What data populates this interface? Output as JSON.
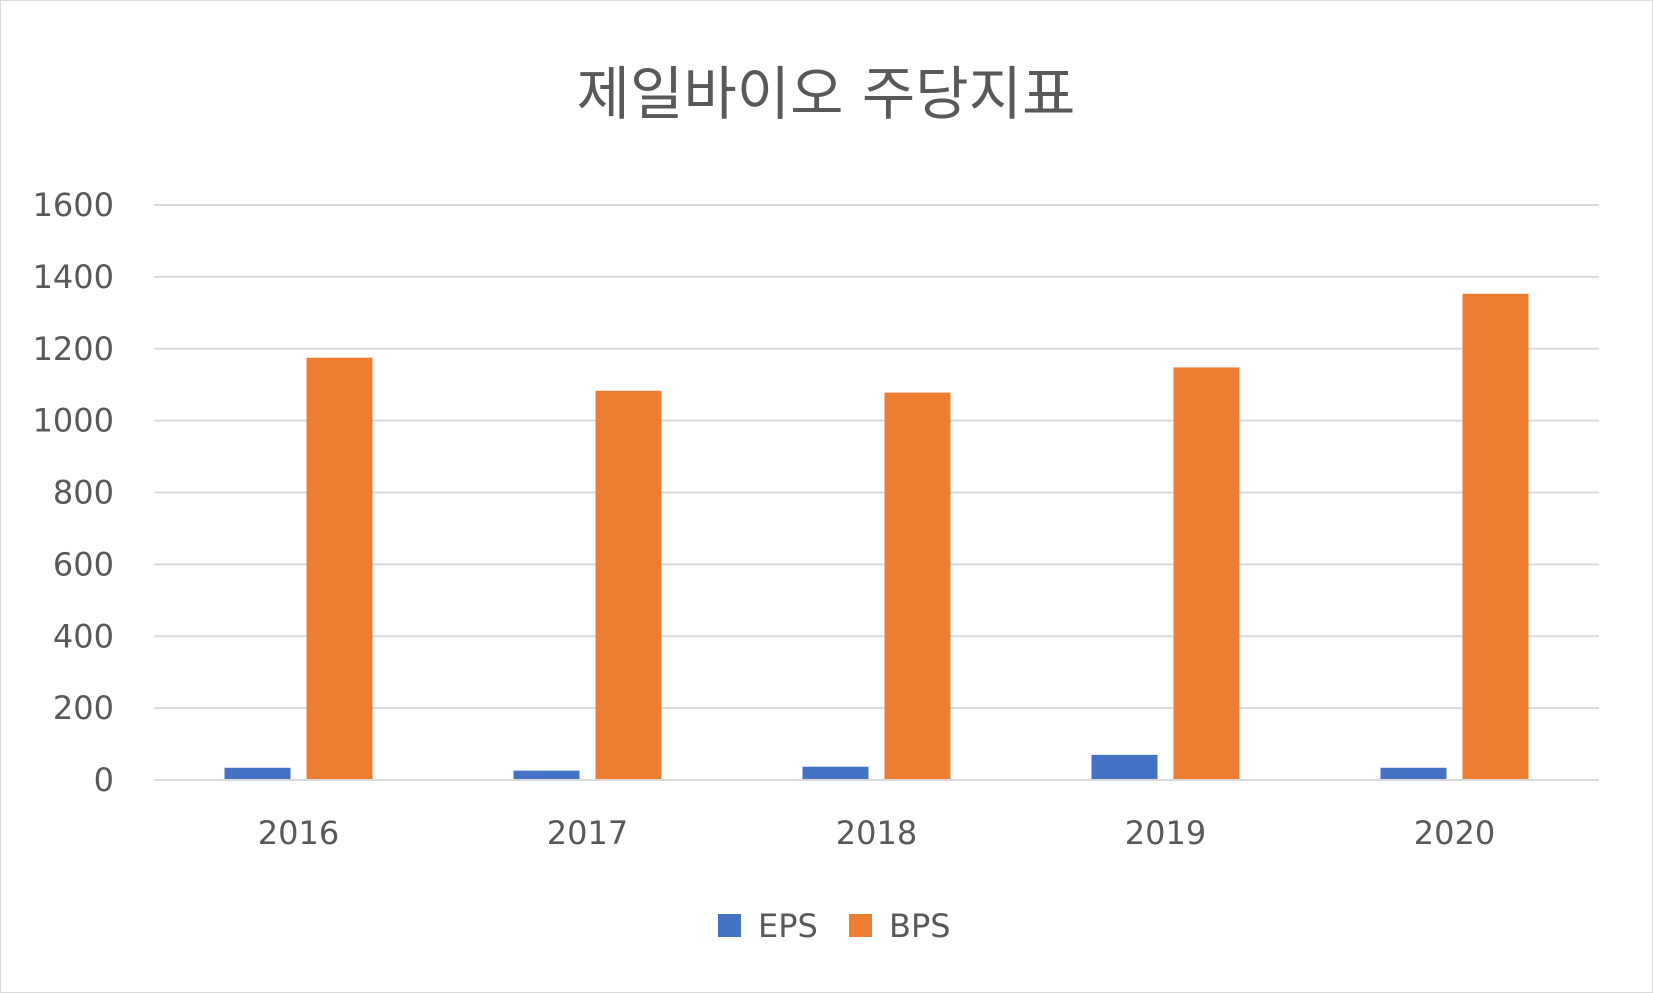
{
  "chart_data": {
    "type": "bar",
    "title": "제일바이오 주당지표",
    "xlabel": "",
    "ylabel": "",
    "categories": [
      "2016",
      "2017",
      "2018",
      "2019",
      "2020"
    ],
    "series": [
      {
        "name": "EPS",
        "color": "#4472c4",
        "values": [
          34,
          26,
          37,
          70,
          34
        ]
      },
      {
        "name": "BPS",
        "color": "#ed7d31",
        "values": [
          1175,
          1083,
          1078,
          1148,
          1353
        ]
      }
    ],
    "ylim": [
      0,
      1600
    ],
    "yticks": [
      "0",
      "200",
      "400",
      "600",
      "800",
      "1000",
      "1200",
      "1400",
      "1600"
    ],
    "grid": true,
    "gridColor": "#d9d9d9",
    "legend": "bottom"
  }
}
